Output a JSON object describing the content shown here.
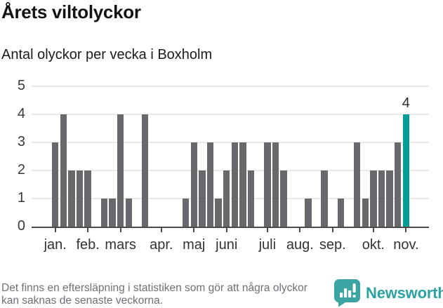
{
  "chart_data": {
    "type": "bar",
    "title": "Årets viltolyckor",
    "subtitle": "Antal olyckor per vecka i Boxholm",
    "x_description": "one bar per week, January through early November; weeks with no bar have 0 accidents",
    "values": [
      3,
      4,
      2,
      2,
      2,
      0,
      1,
      1,
      4,
      1,
      0,
      4,
      0,
      0,
      0,
      0,
      1,
      3,
      2,
      3,
      1,
      2,
      3,
      3,
      2,
      0,
      3,
      3,
      2,
      0,
      0,
      1,
      0,
      2,
      0,
      1,
      0,
      3,
      1,
      2,
      2,
      2,
      3,
      4
    ],
    "month_ticks": [
      {
        "slot": 0,
        "label": "jan."
      },
      {
        "slot": 4,
        "label": "feb."
      },
      {
        "slot": 8,
        "label": "mars"
      },
      {
        "slot": 13,
        "label": "apr."
      },
      {
        "slot": 17,
        "label": "maj"
      },
      {
        "slot": 21,
        "label": "juni"
      },
      {
        "slot": 26,
        "label": "juli"
      },
      {
        "slot": 30,
        "label": "aug."
      },
      {
        "slot": 34,
        "label": "sep."
      },
      {
        "slot": 39,
        "label": "okt."
      },
      {
        "slot": 43,
        "label": "nov."
      }
    ],
    "yticks": [
      0,
      1,
      2,
      3,
      4,
      5
    ],
    "ylim": [
      0,
      5
    ],
    "grid": true,
    "legend": "none",
    "bar_color": "#68686d",
    "grid_color": "#eaeaea",
    "axis_color": "#4b4b4b",
    "highlight": {
      "slot": 43,
      "value": 4,
      "label": "4",
      "color": "#009e96"
    }
  },
  "footer": {
    "text": "Det finns en eftersläpning i statistiken som gör att några olyckor kan saknas de senaste veckorna."
  },
  "brand": {
    "label": "Newsworthy",
    "color": "#2aa2a1",
    "icon": "newsworthy-chart-bubble-icon"
  }
}
